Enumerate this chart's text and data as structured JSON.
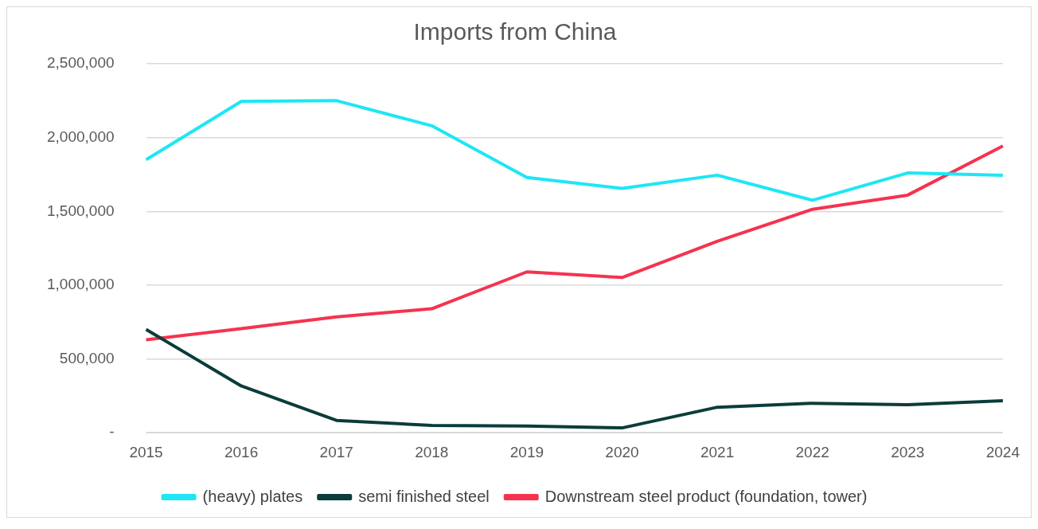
{
  "chart_data": {
    "type": "line",
    "title": "Imports from China",
    "categories": [
      "2015",
      "2016",
      "2017",
      "2018",
      "2019",
      "2020",
      "2021",
      "2022",
      "2023",
      "2024"
    ],
    "series": [
      {
        "name": "(heavy) plates",
        "color": "#1ee6f5",
        "values": [
          1850000,
          2245000,
          2250000,
          2080000,
          1730000,
          1655000,
          1745000,
          1575000,
          1760000,
          1745000
        ]
      },
      {
        "name": "semi finished steel",
        "color": "#0b3d3a",
        "values": [
          700000,
          317000,
          84000,
          50000,
          45000,
          33000,
          173000,
          200000,
          190000,
          217000
        ]
      },
      {
        "name": "Downstream steel product (foundation, tower)",
        "color": "#f5334f",
        "values": [
          630000,
          705000,
          785000,
          840000,
          1090000,
          1052000,
          1297000,
          1514000,
          1610000,
          1943000
        ]
      }
    ],
    "ylim": [
      0,
      2500000
    ],
    "yticks": [
      {
        "value": 0,
        "label": "-"
      },
      {
        "value": 500000,
        "label": "500,000"
      },
      {
        "value": 1000000,
        "label": "1,000,000"
      },
      {
        "value": 1500000,
        "label": "1,500,000"
      },
      {
        "value": 2000000,
        "label": "2,000,000"
      },
      {
        "value": 2500000,
        "label": "2,500,000"
      }
    ],
    "grid": "y",
    "legend": "bottom",
    "marker": "none",
    "line_style": "solid"
  }
}
